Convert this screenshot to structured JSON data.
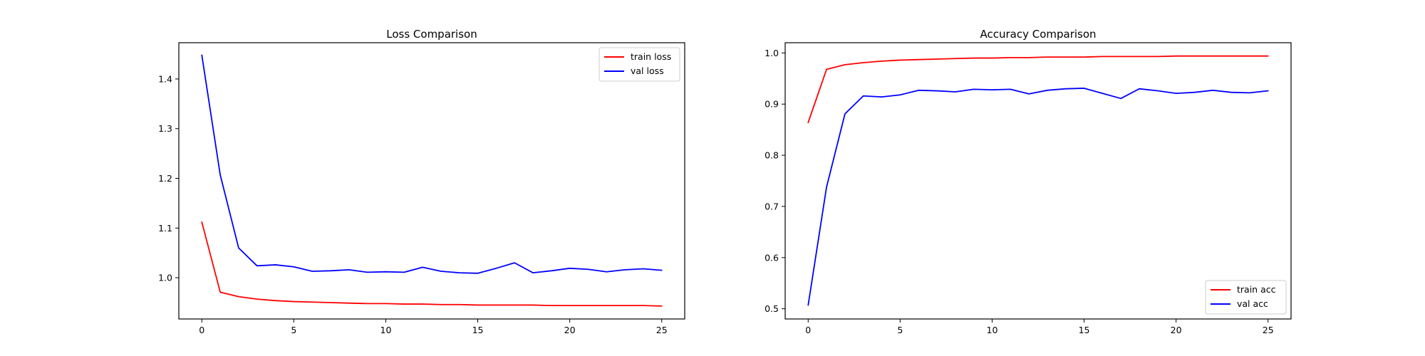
{
  "chart_data": [
    {
      "type": "line",
      "title": "Loss Comparison",
      "xlabel": "",
      "ylabel": "",
      "xlim": [
        -1.25,
        26.25
      ],
      "ylim": [
        0.917,
        1.473
      ],
      "xticks": [
        0,
        5,
        10,
        15,
        20,
        25
      ],
      "yticks": [
        1.0,
        1.1,
        1.2,
        1.3,
        1.4
      ],
      "tick_decimals": 1,
      "grid": false,
      "legend_position": "top-right",
      "x": [
        0,
        1,
        2,
        3,
        4,
        5,
        6,
        7,
        8,
        9,
        10,
        11,
        12,
        13,
        14,
        15,
        16,
        17,
        18,
        19,
        20,
        21,
        22,
        23,
        24,
        25
      ],
      "series": [
        {
          "name": "train loss",
          "color": "#ff0000",
          "values": [
            1.112,
            0.971,
            0.962,
            0.957,
            0.954,
            0.952,
            0.951,
            0.95,
            0.949,
            0.948,
            0.948,
            0.947,
            0.947,
            0.946,
            0.946,
            0.945,
            0.945,
            0.945,
            0.945,
            0.944,
            0.944,
            0.944,
            0.944,
            0.944,
            0.944,
            0.943
          ]
        },
        {
          "name": "val loss",
          "color": "#0000ff",
          "values": [
            1.448,
            1.207,
            1.06,
            1.024,
            1.026,
            1.022,
            1.013,
            1.014,
            1.016,
            1.011,
            1.012,
            1.011,
            1.021,
            1.013,
            1.01,
            1.009,
            1.019,
            1.03,
            1.01,
            1.014,
            1.019,
            1.017,
            1.012,
            1.016,
            1.018,
            1.015
          ]
        }
      ]
    },
    {
      "type": "line",
      "title": "Accuracy Comparison",
      "xlabel": "",
      "ylabel": "",
      "xlim": [
        -1.25,
        26.25
      ],
      "ylim": [
        0.48,
        1.02
      ],
      "xticks": [
        0,
        5,
        10,
        15,
        20,
        25
      ],
      "yticks": [
        0.5,
        0.6,
        0.7,
        0.8,
        0.9,
        1.0
      ],
      "tick_decimals": 1,
      "grid": false,
      "legend_position": "bottom-right",
      "x": [
        0,
        1,
        2,
        3,
        4,
        5,
        6,
        7,
        8,
        9,
        10,
        11,
        12,
        13,
        14,
        15,
        16,
        17,
        18,
        19,
        20,
        21,
        22,
        23,
        24,
        25
      ],
      "series": [
        {
          "name": "train acc",
          "color": "#ff0000",
          "values": [
            0.864,
            0.968,
            0.977,
            0.981,
            0.984,
            0.986,
            0.987,
            0.988,
            0.989,
            0.99,
            0.99,
            0.991,
            0.991,
            0.992,
            0.992,
            0.992,
            0.993,
            0.993,
            0.993,
            0.993,
            0.994,
            0.994,
            0.994,
            0.994,
            0.994,
            0.994
          ]
        },
        {
          "name": "val acc",
          "color": "#0000ff",
          "values": [
            0.507,
            0.738,
            0.881,
            0.916,
            0.914,
            0.918,
            0.927,
            0.926,
            0.924,
            0.929,
            0.928,
            0.929,
            0.92,
            0.927,
            0.93,
            0.931,
            0.921,
            0.911,
            0.93,
            0.926,
            0.921,
            0.923,
            0.927,
            0.923,
            0.922,
            0.926
          ]
        }
      ]
    }
  ]
}
